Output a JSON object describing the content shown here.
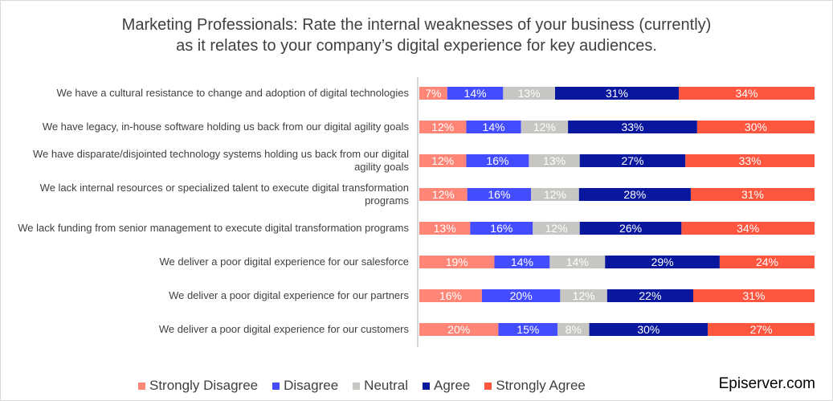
{
  "chart_data": {
    "type": "bar",
    "orientation": "horizontal",
    "stacked": "100%",
    "title": "Marketing Professionals: Rate the internal weaknesses of your business (currently)\nas it relates to your company’s digital experience for key audiences.",
    "title_lines": [
      "Marketing Professionals: Rate the internal weaknesses of your business (currently)",
      "as it relates to your company’s digital experience for key audiences."
    ],
    "categories": [
      "We have a cultural resistance to change and adoption of digital technologies",
      "We have legacy, in-house software holding us back from our digital agility goals",
      "We have disparate/disjointed technology systems holding us back from our digital agility goals",
      "We lack internal resources or specialized talent to execute digital transformation programs",
      "We lack funding from senior management to execute digital transformation programs",
      "We deliver a poor digital experience for our salesforce",
      "We deliver a poor digital experience for our partners",
      "We deliver a poor digital experience for our customers"
    ],
    "series": [
      {
        "name": "Strongly Disagree",
        "color": "#ff8577",
        "values": [
          7,
          12,
          12,
          12,
          13,
          19,
          16,
          20
        ]
      },
      {
        "name": "Disagree",
        "color": "#434cff",
        "values": [
          14,
          14,
          16,
          16,
          16,
          14,
          20,
          15
        ]
      },
      {
        "name": "Neutral",
        "color": "#c8c6c3",
        "values": [
          13,
          12,
          13,
          12,
          12,
          14,
          12,
          8
        ]
      },
      {
        "name": "Agree",
        "color": "#08179e",
        "values": [
          31,
          33,
          27,
          28,
          26,
          29,
          22,
          30
        ]
      },
      {
        "name": "Strongly Agree",
        "color": "#ff5640",
        "values": [
          34,
          30,
          33,
          31,
          34,
          24,
          31,
          27
        ]
      }
    ],
    "data_label_suffix": "%",
    "legend_position": "bottom",
    "grid": false
  },
  "brand": "Episerver.com"
}
